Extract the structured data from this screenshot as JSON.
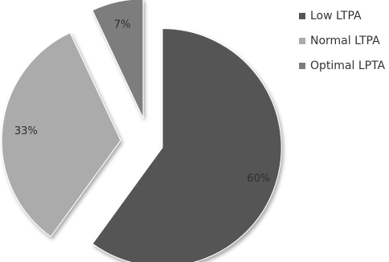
{
  "chart_data": {
    "type": "pie",
    "title": "",
    "categories": [
      "Low LTPA",
      "Normal LTPA",
      "Optimal LPTA"
    ],
    "values": [
      60,
      33,
      7
    ],
    "labels": [
      "60%",
      "33%",
      "7%"
    ],
    "colors": [
      "#555555",
      "#ababab",
      "#7d7d7d"
    ],
    "exploded": true,
    "legend_position": "right"
  }
}
